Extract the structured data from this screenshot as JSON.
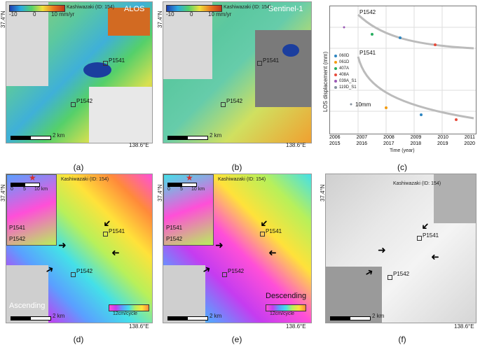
{
  "panels": {
    "a": {
      "caption": "(a)",
      "title": "ALOS",
      "region": "Kashiwazaki (ID: 154)",
      "lat": "37.4°N",
      "lon": "138.6°E",
      "cb_min": "-10",
      "cb_mid": "0",
      "cb_max": "10 mm/yr",
      "scale": "2 km",
      "p1": "P1541",
      "p2": "P1542"
    },
    "b": {
      "caption": "(b)",
      "title": "Sentinel-1",
      "region": "Kashiwazaki (ID: 154)",
      "lat": "37.4°N",
      "lon": "138.6°E",
      "cb_min": "-10",
      "cb_mid": "0",
      "cb_max": "10 mm/yr",
      "scale": "2 km",
      "p1": "P1541",
      "p2": "P1542",
      "zero": "0"
    },
    "c": {
      "caption": "(c)",
      "ylabel": "LOS displacement (mm)",
      "xlabel": "Time (year)",
      "p1": "P1542",
      "p2": "P1541",
      "mm": "10mm",
      "top_years": [
        "2006",
        "2007",
        "2008",
        "2009",
        "2010",
        "2011"
      ],
      "bottom_years": [
        "2015",
        "2016",
        "2017",
        "2018",
        "2019",
        "2020"
      ],
      "legend": [
        {
          "name": "060D",
          "color": "#2e86c1"
        },
        {
          "name": "061D",
          "color": "#f39c12"
        },
        {
          "name": "407A",
          "color": "#27ae60"
        },
        {
          "name": "408A",
          "color": "#e74c3c"
        },
        {
          "name": "039A_S1",
          "color": "#9b59b6"
        },
        {
          "name": "119D_S1",
          "color": "#85929e"
        }
      ]
    },
    "d": {
      "caption": "(d)",
      "region": "Kashiwazaki (ID: 154)",
      "lat": "37.4°N",
      "lon": "138.6°E",
      "mode": "Ascending",
      "cycle": "12cm/cycle",
      "scale": "2 km",
      "inset_scale": "10 km",
      "inset_zero": "0",
      "inset_five": "5",
      "p1": "P1541",
      "p2": "P1542"
    },
    "e": {
      "caption": "(e)",
      "region": "Kashiwazaki (ID: 154)",
      "lat": "37.4°N",
      "lon": "138.6°E",
      "mode": "Descending",
      "cycle": "12cm/cycle",
      "scale": "2 km",
      "inset_scale": "10 km",
      "inset_zero": "0",
      "inset_five": "5",
      "p1": "P1541",
      "p2": "P1542"
    },
    "f": {
      "caption": "(f)",
      "region": "Kashiwazaki (ID: 154)",
      "lat": "37.4°N",
      "lon": "138.6°E",
      "scale": "2 km",
      "p1": "P1541",
      "p2": "P1542"
    }
  },
  "colors": {
    "vel_scale": [
      "#1f3fb0",
      "#2aa9e0",
      "#54d16a",
      "#f0e13b",
      "#e87a1f",
      "#c0381a"
    ],
    "phase": [
      "#ff4fd8",
      "#c53cf0",
      "#5aa0ff",
      "#44e0e8",
      "#b8f05a",
      "#ffe23a",
      "#ff8a3a",
      "#ff4fd8"
    ]
  }
}
